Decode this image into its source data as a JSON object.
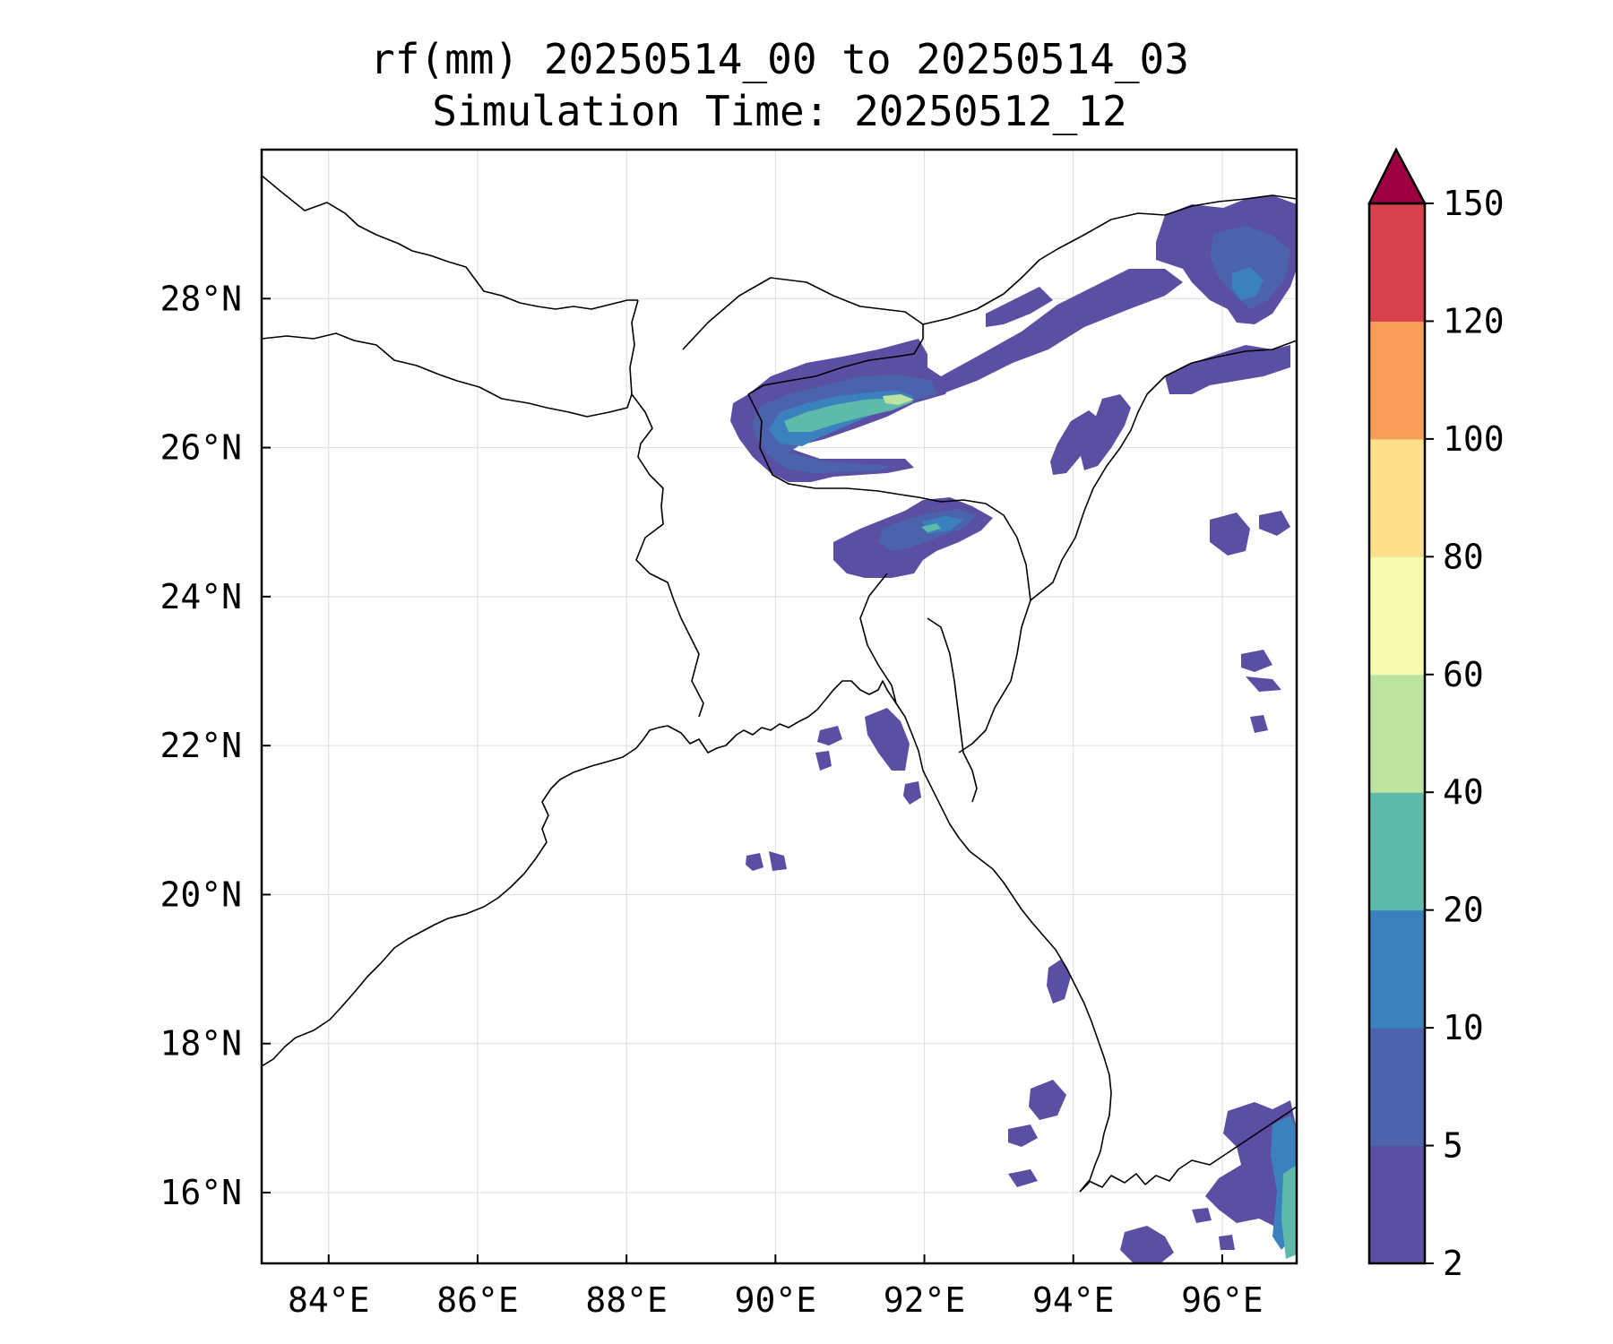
{
  "title": {
    "line1": "rf(mm) 20250514_00 to 20250514_03",
    "line2": "Simulation Time: 20250512_12"
  },
  "map": {
    "lon_range": [
      83.1,
      97.0
    ],
    "lat_range": [
      15.05,
      30.0
    ],
    "lon_ticks": [
      84,
      86,
      88,
      90,
      92,
      94,
      96
    ],
    "lon_tick_labels": [
      "84°E",
      "86°E",
      "88°E",
      "90°E",
      "92°E",
      "94°E",
      "96°E"
    ],
    "lat_ticks": [
      16,
      18,
      20,
      22,
      24,
      26,
      28
    ],
    "lat_tick_labels": [
      "16°N",
      "18°N",
      "20°N",
      "22°N",
      "24°N",
      "26°N",
      "28°N"
    ],
    "grid": true
  },
  "colorbar": {
    "levels": [
      2,
      5,
      10,
      20,
      40,
      60,
      80,
      100,
      120,
      150
    ],
    "labels": [
      "2",
      "5",
      "10",
      "20",
      "40",
      "60",
      "80",
      "100",
      "120",
      "150"
    ],
    "colors": [
      "#5a4fa3",
      "#4b62ad",
      "#3a81bd",
      "#5fbba9",
      "#bde3a1",
      "#f4fbaf",
      "#fbdf8a",
      "#f99d59",
      "#d8424d"
    ],
    "extend_color": "#9e0142",
    "extend": "max"
  }
}
